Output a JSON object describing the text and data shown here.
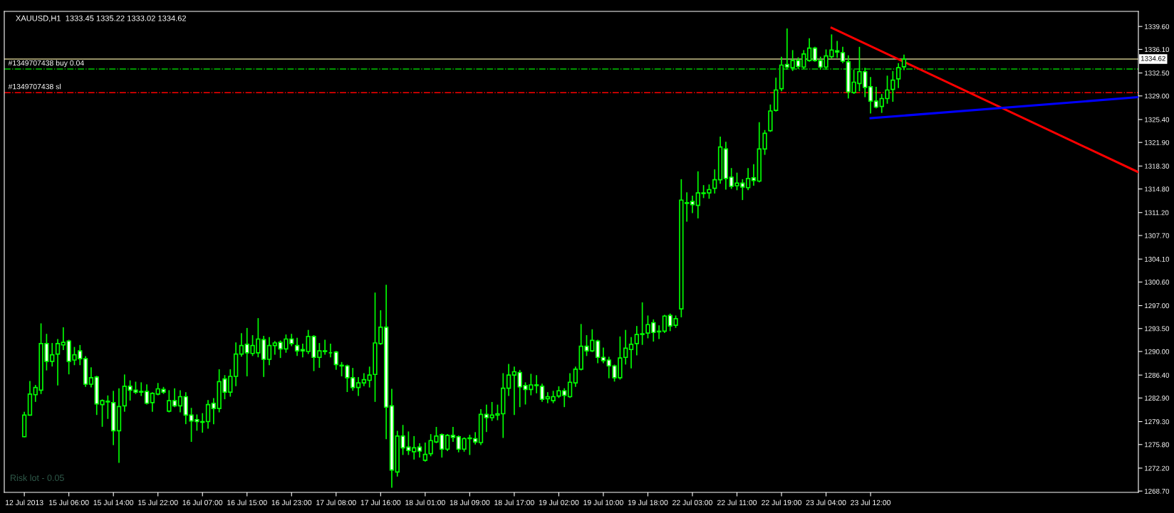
{
  "chart_data": {
    "type": "candlestick",
    "title": "XAUUSD,H1  1333.45 1335.22 1333.02 1334.62",
    "annotations": [
      "Risk lot - 0.05"
    ],
    "color": "#00ff00",
    "categories": [
      "12 Jul 2013",
      null,
      null,
      null,
      null,
      null,
      null,
      null,
      "15 Jul 06:00",
      null,
      null,
      null,
      null,
      null,
      null,
      null,
      "15 Jul 14:00",
      null,
      null,
      null,
      null,
      null,
      null,
      null,
      "15 Jul 22:00",
      null,
      null,
      null,
      null,
      null,
      null,
      null,
      "16 Jul 07:00",
      null,
      null,
      null,
      null,
      null,
      null,
      null,
      "16 Jul 15:00",
      null,
      null,
      null,
      null,
      null,
      null,
      null,
      "16 Jul 23:00",
      null,
      null,
      null,
      null,
      null,
      null,
      null,
      "17 Jul 08:00",
      null,
      null,
      null,
      null,
      null,
      null,
      null,
      "17 Jul 16:00",
      null,
      null,
      null,
      null,
      null,
      null,
      null,
      "18 Jul 01:00",
      null,
      null,
      null,
      null,
      null,
      null,
      null,
      "18 Jul 09:00",
      null,
      null,
      null,
      null,
      null,
      null,
      null,
      "18 Jul 17:00",
      null,
      null,
      null,
      null,
      null,
      null,
      null,
      "19 Jul 02:00",
      null,
      null,
      null,
      null,
      null,
      null,
      null,
      "19 Jul 10:00",
      null,
      null,
      null,
      null,
      null,
      null,
      null,
      "19 Jul 18:00",
      null,
      null,
      null,
      null,
      null,
      null,
      null,
      "22 Jul 03:00",
      null,
      null,
      null,
      null,
      null,
      null,
      null,
      "22 Jul 11:00",
      null,
      null,
      null,
      null,
      null,
      null,
      null,
      "22 Jul 19:00",
      null,
      null,
      null,
      null,
      null,
      null,
      null,
      "23 Jul 04:00",
      null,
      null,
      null,
      null,
      null,
      null,
      null,
      "23 Jul 12:00",
      null,
      null,
      null,
      null,
      null,
      null,
      null,
      null,
      null,
      null,
      null,
      null,
      null,
      null,
      null,
      null,
      null,
      null,
      null,
      null,
      null,
      null,
      null,
      null,
      null,
      null,
      null,
      null,
      null,
      null,
      null,
      null,
      null,
      null,
      null,
      null,
      null,
      null,
      null,
      null,
      null,
      null,
      null,
      null,
      null,
      null,
      null,
      null
    ],
    "ohlc": [
      [
        1277.0,
        1280.7,
        1277.0,
        1280.3
      ],
      [
        1280.3,
        1285.4,
        1280.3,
        1283.5
      ],
      [
        1283.4,
        1284.8,
        1282.4,
        1284.5
      ],
      [
        1284.1,
        1294.2,
        1283.6,
        1291.2
      ],
      [
        1291.2,
        1292.6,
        1287.2,
        1288.5
      ],
      [
        1288.5,
        1291.2,
        1287.8,
        1289.5
      ],
      [
        1289.6,
        1291.8,
        1284.9,
        1291.2
      ],
      [
        1291.0,
        1293.6,
        1290.3,
        1291.4
      ],
      [
        1291.6,
        1291.7,
        1286.6,
        1288.5
      ],
      [
        1288.7,
        1290.6,
        1288.0,
        1289.5
      ],
      [
        1290.1,
        1290.9,
        1288.0,
        1288.9
      ],
      [
        1288.9,
        1289.2,
        1284.7,
        1285.0
      ],
      [
        1285.0,
        1287.5,
        1284.6,
        1286.0
      ],
      [
        1286.1,
        1286.2,
        1280.4,
        1282.0
      ],
      [
        1281.9,
        1282.6,
        1278.6,
        1282.5
      ],
      [
        1282.4,
        1283.2,
        1279.8,
        1282.3
      ],
      [
        1282.2,
        1283.9,
        1275.8,
        1277.9
      ],
      [
        1277.9,
        1284.3,
        1273.1,
        1281.6
      ],
      [
        1281.7,
        1286.4,
        1280.9,
        1284.7
      ],
      [
        1284.7,
        1285.5,
        1282.6,
        1284.1
      ],
      [
        1284.1,
        1285.3,
        1283.6,
        1283.8
      ],
      [
        1283.9,
        1285.2,
        1283.3,
        1283.8
      ],
      [
        1283.9,
        1284.9,
        1282.0,
        1282.1
      ],
      [
        1282.2,
        1283.7,
        1280.9,
        1283.6
      ],
      [
        1283.5,
        1285.1,
        1283.4,
        1284.3
      ],
      [
        1284.2,
        1284.5,
        1283.6,
        1283.8
      ],
      [
        1280.9,
        1284.0,
        1280.8,
        1282.5
      ],
      [
        1282.5,
        1284.3,
        1281.6,
        1281.7
      ],
      [
        1281.7,
        1284.0,
        1280.8,
        1283.1
      ],
      [
        1283.1,
        1283.7,
        1279.0,
        1280.3
      ],
      [
        1280.3,
        1281.3,
        1276.3,
        1279.4
      ],
      [
        1279.6,
        1280.3,
        1278.0,
        1279.3
      ],
      [
        1279.3,
        1280.5,
        1277.7,
        1279.2
      ],
      [
        1279.3,
        1282.5,
        1278.3,
        1281.9
      ],
      [
        1282.1,
        1282.8,
        1279.0,
        1281.3
      ],
      [
        1281.3,
        1287.2,
        1280.8,
        1285.4
      ],
      [
        1285.8,
        1286.3,
        1282.8,
        1283.8
      ],
      [
        1283.8,
        1287.2,
        1283.2,
        1286.2
      ],
      [
        1286.2,
        1291.3,
        1284.8,
        1289.6
      ],
      [
        1289.6,
        1292.7,
        1289.3,
        1290.9
      ],
      [
        1291.1,
        1293.5,
        1286.3,
        1289.8
      ],
      [
        1289.7,
        1292.4,
        1289.4,
        1290.9
      ],
      [
        1289.8,
        1295.0,
        1289.2,
        1291.9
      ],
      [
        1291.8,
        1292.3,
        1286.2,
        1288.8
      ],
      [
        1288.8,
        1292.1,
        1288.0,
        1290.9
      ],
      [
        1290.9,
        1291.5,
        1289.6,
        1291.3
      ],
      [
        1291.4,
        1291.6,
        1289.1,
        1290.4
      ],
      [
        1290.4,
        1292.5,
        1289.9,
        1291.9
      ],
      [
        1291.9,
        1292.6,
        1290.9,
        1291.2
      ],
      [
        1290.9,
        1292.0,
        1289.4,
        1290.1
      ],
      [
        1290.3,
        1291.1,
        1289.2,
        1290.1
      ],
      [
        1290.0,
        1293.2,
        1289.7,
        1292.3
      ],
      [
        1292.3,
        1292.4,
        1287.1,
        1289.1
      ],
      [
        1289.1,
        1291.2,
        1287.6,
        1290.1
      ],
      [
        1290.1,
        1291.7,
        1289.6,
        1290.0
      ],
      [
        1289.8,
        1291.1,
        1289.2,
        1289.8
      ],
      [
        1289.9,
        1290.0,
        1287.3,
        1288.0
      ],
      [
        1287.9,
        1288.3,
        1286.3,
        1287.8
      ],
      [
        1287.8,
        1287.9,
        1283.9,
        1286.0
      ],
      [
        1286.0,
        1287.4,
        1284.1,
        1284.5
      ],
      [
        1284.5,
        1286.0,
        1283.3,
        1285.2
      ],
      [
        1285.2,
        1286.6,
        1284.8,
        1285.7
      ],
      [
        1285.6,
        1287.6,
        1284.6,
        1286.4
      ],
      [
        1286.5,
        1298.9,
        1282.4,
        1291.3
      ],
      [
        1291.2,
        1296.2,
        1291.1,
        1293.7
      ],
      [
        1293.7,
        1300.1,
        1276.7,
        1281.5
      ],
      [
        1281.7,
        1284.2,
        1269.3,
        1271.9
      ],
      [
        1271.6,
        1277.8,
        1271.0,
        1277.1
      ],
      [
        1277.1,
        1278.7,
        1274.3,
        1275.3
      ],
      [
        1275.4,
        1277.7,
        1274.3,
        1274.9
      ],
      [
        1274.7,
        1277.0,
        1273.6,
        1275.3
      ],
      [
        1275.4,
        1275.9,
        1273.9,
        1274.8
      ],
      [
        1273.4,
        1276.0,
        1273.3,
        1274.3
      ],
      [
        1274.4,
        1277.3,
        1274.1,
        1276.4
      ],
      [
        1276.2,
        1278.4,
        1276.1,
        1277.1
      ],
      [
        1277.3,
        1277.4,
        1273.9,
        1275.1
      ],
      [
        1275.1,
        1277.3,
        1274.9,
        1277.2
      ],
      [
        1277.2,
        1278.4,
        1276.3,
        1276.9
      ],
      [
        1277.0,
        1277.1,
        1274.7,
        1275.1
      ],
      [
        1275.1,
        1276.8,
        1274.8,
        1276.7
      ],
      [
        1276.7,
        1277.2,
        1274.3,
        1276.8
      ],
      [
        1276.7,
        1277.6,
        1275.9,
        1276.2
      ],
      [
        1276.1,
        1281.1,
        1275.8,
        1280.4
      ],
      [
        1280.4,
        1281.8,
        1277.8,
        1279.9
      ],
      [
        1279.9,
        1282.2,
        1279.5,
        1280.3
      ],
      [
        1280.3,
        1281.8,
        1279.6,
        1280.5
      ],
      [
        1280.5,
        1286.6,
        1276.9,
        1284.4
      ],
      [
        1284.4,
        1288.0,
        1283.3,
        1286.4
      ],
      [
        1286.4,
        1287.6,
        1280.4,
        1286.9
      ],
      [
        1286.8,
        1287.1,
        1281.6,
        1284.6
      ],
      [
        1284.8,
        1285.2,
        1282.0,
        1284.2
      ],
      [
        1284.2,
        1286.5,
        1283.4,
        1284.9
      ],
      [
        1284.9,
        1286.3,
        1283.7,
        1284.8
      ],
      [
        1284.7,
        1285.0,
        1282.4,
        1282.7
      ],
      [
        1282.8,
        1283.7,
        1282.2,
        1283.1
      ],
      [
        1282.5,
        1283.9,
        1282.2,
        1283.1
      ],
      [
        1283.2,
        1284.6,
        1283.0,
        1284.0
      ],
      [
        1284.0,
        1284.3,
        1281.6,
        1283.3
      ],
      [
        1283.1,
        1286.6,
        1283.0,
        1285.3
      ],
      [
        1285.2,
        1287.6,
        1284.7,
        1287.3
      ],
      [
        1287.3,
        1294.1,
        1287.2,
        1290.8
      ],
      [
        1290.8,
        1292.4,
        1289.4,
        1290.1
      ],
      [
        1290.1,
        1293.3,
        1290.0,
        1291.7
      ],
      [
        1291.6,
        1291.7,
        1288.3,
        1289.1
      ],
      [
        1289.1,
        1290.5,
        1288.3,
        1288.6
      ],
      [
        1288.7,
        1289.1,
        1286.0,
        1287.8
      ],
      [
        1287.8,
        1287.9,
        1285.5,
        1286.0
      ],
      [
        1286.0,
        1292.2,
        1285.8,
        1289.0
      ],
      [
        1289.1,
        1293.2,
        1288.1,
        1290.5
      ],
      [
        1290.3,
        1292.1,
        1287.5,
        1291.1
      ],
      [
        1291.2,
        1293.8,
        1289.5,
        1292.6
      ],
      [
        1292.6,
        1297.4,
        1291.1,
        1292.7
      ],
      [
        1292.8,
        1295.4,
        1292.1,
        1294.1
      ],
      [
        1294.4,
        1294.8,
        1291.6,
        1292.9
      ],
      [
        1293.0,
        1293.9,
        1292.0,
        1293.1
      ],
      [
        1293.1,
        1295.5,
        1292.9,
        1295.4
      ],
      [
        1295.5,
        1295.7,
        1293.2,
        1293.9
      ],
      [
        1294.0,
        1295.4,
        1293.7,
        1295.0
      ],
      [
        1296.5,
        1316.2,
        1295.3,
        1313.1
      ],
      [
        1312.7,
        1314.2,
        1309.9,
        1312.6
      ],
      [
        1312.9,
        1313.7,
        1311.2,
        1312.4
      ],
      [
        1312.3,
        1317.4,
        1310.4,
        1314.2
      ],
      [
        1314.2,
        1315.3,
        1313.5,
        1314.1
      ],
      [
        1314.2,
        1315.4,
        1313.4,
        1314.7
      ],
      [
        1314.9,
        1317.7,
        1314.2,
        1316.2
      ],
      [
        1316.2,
        1322.7,
        1315.7,
        1321.2
      ],
      [
        1320.9,
        1321.9,
        1314.8,
        1316.4
      ],
      [
        1316.6,
        1317.9,
        1314.9,
        1315.2
      ],
      [
        1315.3,
        1317.2,
        1314.7,
        1315.7
      ],
      [
        1315.7,
        1316.2,
        1313.2,
        1315.1
      ],
      [
        1315.0,
        1317.9,
        1314.7,
        1316.4
      ],
      [
        1316.5,
        1318.5,
        1315.4,
        1316.1
      ],
      [
        1316.0,
        1324.9,
        1315.9,
        1320.9
      ],
      [
        1320.9,
        1323.7,
        1320.1,
        1323.3
      ],
      [
        1323.7,
        1327.6,
        1323.6,
        1326.7
      ],
      [
        1326.8,
        1331.7,
        1326.7,
        1329.9
      ],
      [
        1330.1,
        1334.9,
        1329.8,
        1333.7
      ],
      [
        1333.8,
        1339.2,
        1333.1,
        1333.4
      ],
      [
        1333.3,
        1335.9,
        1332.9,
        1334.4
      ],
      [
        1334.4,
        1334.8,
        1333.2,
        1333.5
      ],
      [
        1333.4,
        1335.9,
        1333.2,
        1335.4
      ],
      [
        1334.4,
        1337.7,
        1334.3,
        1336.3
      ],
      [
        1336.3,
        1336.4,
        1334.3,
        1334.4
      ],
      [
        1334.4,
        1334.9,
        1333.1,
        1333.4
      ],
      [
        1333.4,
        1336.0,
        1333.1,
        1335.1
      ],
      [
        1335.0,
        1338.3,
        1334.8,
        1336.0
      ],
      [
        1335.9,
        1337.3,
        1334.9,
        1335.7
      ],
      [
        1335.6,
        1336.4,
        1334.1,
        1334.3
      ],
      [
        1334.2,
        1335.1,
        1328.7,
        1329.6
      ],
      [
        1329.5,
        1332.9,
        1329.4,
        1331.1
      ],
      [
        1330.9,
        1336.4,
        1329.8,
        1332.7
      ],
      [
        1332.7,
        1333.2,
        1328.9,
        1330.3
      ],
      [
        1330.4,
        1331.8,
        1326.4,
        1328.2
      ],
      [
        1328.2,
        1330.3,
        1327.2,
        1327.3
      ],
      [
        1327.4,
        1329.2,
        1326.5,
        1328.6
      ],
      [
        1328.6,
        1332.0,
        1327.9,
        1329.9
      ],
      [
        1330.0,
        1332.7,
        1328.2,
        1331.4
      ],
      [
        1331.6,
        1333.9,
        1330.3,
        1333.3
      ],
      [
        1333.45,
        1335.22,
        1333.02,
        1334.62
      ],
      null,
      null,
      null,
      null,
      null,
      null,
      null,
      null,
      null,
      null,
      null,
      null,
      null,
      null,
      null,
      null,
      null,
      null,
      null,
      null,
      null,
      null,
      null,
      null,
      null,
      null,
      null,
      null,
      null,
      null,
      null,
      null,
      null,
      null,
      null,
      null,
      null,
      null,
      null,
      null,
      null,
      null
    ],
    "series": [
      {
        "type": "line",
        "color": "#ff0000",
        "values": [
          null,
          null,
          null,
          null,
          null,
          null,
          null,
          null,
          null,
          null,
          null,
          null,
          null,
          null,
          null,
          null,
          null,
          null,
          null,
          null,
          null,
          null,
          null,
          null,
          null,
          null,
          null,
          null,
          null,
          null,
          null,
          null,
          null,
          null,
          null,
          null,
          null,
          null,
          null,
          null,
          null,
          null,
          null,
          null,
          null,
          null,
          null,
          null,
          null,
          null,
          null,
          null,
          null,
          null,
          null,
          null,
          null,
          null,
          null,
          null,
          null,
          null,
          null,
          null,
          null,
          null,
          null,
          null,
          null,
          null,
          null,
          null,
          null,
          null,
          null,
          null,
          null,
          null,
          null,
          null,
          null,
          null,
          null,
          null,
          null,
          null,
          null,
          null,
          null,
          null,
          null,
          null,
          null,
          null,
          null,
          null,
          null,
          null,
          null,
          null,
          null,
          null,
          null,
          null,
          null,
          null,
          null,
          null,
          null,
          null,
          null,
          null,
          null,
          null,
          null,
          null,
          null,
          null,
          null,
          null,
          null,
          null,
          null,
          null,
          null,
          null,
          null,
          null,
          null,
          null,
          null,
          null,
          null,
          null,
          null,
          null,
          null,
          null,
          null,
          null,
          null,
          null,
          null,
          null,
          null,
          1339.4,
          null,
          null,
          null,
          null,
          null,
          null,
          null,
          null,
          null,
          null,
          null,
          null,
          null,
          null,
          null,
          null,
          null,
          null,
          null,
          null,
          null,
          null,
          null,
          null,
          null,
          null,
          null,
          null,
          null,
          null,
          null,
          null,
          null,
          null,
          null,
          null,
          null,
          null,
          null,
          null,
          null,
          null,
          null,
          null,
          null,
          null,
          null,
          null,
          null,
          null,
          null,
          null,
          null,
          null,
          1317.4
        ]
      },
      {
        "type": "line",
        "color": "#0000ff",
        "values": [
          null,
          null,
          null,
          null,
          null,
          null,
          null,
          null,
          null,
          null,
          null,
          null,
          null,
          null,
          null,
          null,
          null,
          null,
          null,
          null,
          null,
          null,
          null,
          null,
          null,
          null,
          null,
          null,
          null,
          null,
          null,
          null,
          null,
          null,
          null,
          null,
          null,
          null,
          null,
          null,
          null,
          null,
          null,
          null,
          null,
          null,
          null,
          null,
          null,
          null,
          null,
          null,
          null,
          null,
          null,
          null,
          null,
          null,
          null,
          null,
          null,
          null,
          null,
          null,
          null,
          null,
          null,
          null,
          null,
          null,
          null,
          null,
          null,
          null,
          null,
          null,
          null,
          null,
          null,
          null,
          null,
          null,
          null,
          null,
          null,
          null,
          null,
          null,
          null,
          null,
          null,
          null,
          null,
          null,
          null,
          null,
          null,
          null,
          null,
          null,
          null,
          null,
          null,
          null,
          null,
          null,
          null,
          null,
          null,
          null,
          null,
          null,
          null,
          null,
          null,
          null,
          null,
          null,
          null,
          null,
          null,
          null,
          null,
          null,
          null,
          null,
          null,
          null,
          null,
          null,
          null,
          null,
          null,
          null,
          null,
          null,
          null,
          null,
          null,
          null,
          null,
          null,
          null,
          null,
          null,
          null,
          null,
          null,
          null,
          null,
          null,
          null,
          1325.6,
          null,
          null,
          null,
          null,
          null,
          null,
          null,
          null,
          null,
          null,
          null,
          null,
          null,
          null,
          null,
          null,
          null,
          null,
          null,
          null,
          null,
          null,
          null,
          null,
          null,
          null,
          null,
          null,
          null,
          null,
          null,
          null,
          null,
          null,
          null,
          null,
          null,
          null,
          null,
          null,
          null,
          null,
          null,
          null,
          null,
          null,
          null,
          1328.8
        ]
      }
    ],
    "ref_lines": [
      {
        "axis": "y",
        "value": 1334.62,
        "label": "1334.62",
        "color": "#c8c08a",
        "line_style": "solid"
      },
      {
        "axis": "y",
        "value": 1333.1,
        "label": "#1349707438 buy 0.04",
        "color": "#00c800",
        "line_style": "dashdot"
      },
      {
        "axis": "y",
        "value": 1329.5,
        "label": "#1349707438 sl",
        "color": "#ff0000",
        "line_style": "dashdot"
      }
    ],
    "ylim": [
      1268.5,
      1341.9
    ],
    "yticks": [
      {
        "value": 1339.6,
        "label": "1339.60"
      },
      {
        "value": 1336.1,
        "label": "1336.10"
      },
      {
        "value": 1332.5,
        "label": "1332.50"
      },
      {
        "value": 1329.0,
        "label": "1329.00"
      },
      {
        "value": 1325.4,
        "label": "1325.40"
      },
      {
        "value": 1321.9,
        "label": "1321.90"
      },
      {
        "value": 1318.3,
        "label": "1318.30"
      },
      {
        "value": 1314.8,
        "label": "1314.80"
      },
      {
        "value": 1311.2,
        "label": "1311.20"
      },
      {
        "value": 1307.7,
        "label": "1307.70"
      },
      {
        "value": 1304.1,
        "label": "1304.10"
      },
      {
        "value": 1300.6,
        "label": "1300.60"
      },
      {
        "value": 1297.0,
        "label": "1297.00"
      },
      {
        "value": 1293.5,
        "label": "1293.50"
      },
      {
        "value": 1290.0,
        "label": "1290.00"
      },
      {
        "value": 1286.4,
        "label": "1286.40"
      },
      {
        "value": 1282.9,
        "label": "1282.90"
      },
      {
        "value": 1279.3,
        "label": "1279.30"
      },
      {
        "value": 1275.8,
        "label": "1275.80"
      },
      {
        "value": 1272.2,
        "label": "1272.20"
      },
      {
        "value": 1268.7,
        "label": "1268.70"
      }
    ],
    "grid": false,
    "legend": false
  }
}
